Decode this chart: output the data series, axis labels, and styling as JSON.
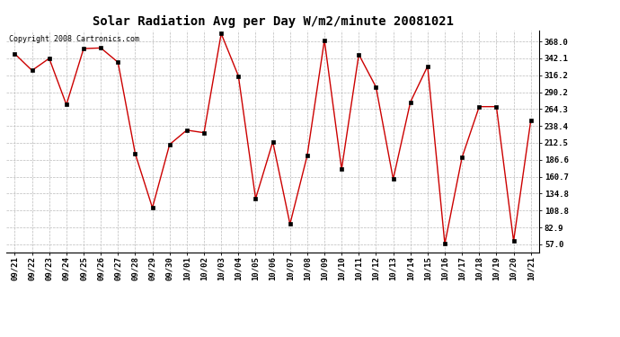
{
  "title": "Solar Radiation Avg per Day W/m2/minute 20081021",
  "copyright": "Copyright 2008 Cartronics.com",
  "dates": [
    "09/21",
    "09/22",
    "09/23",
    "09/24",
    "09/25",
    "09/26",
    "09/27",
    "09/28",
    "09/29",
    "09/30",
    "10/01",
    "10/02",
    "10/03",
    "10/04",
    "10/05",
    "10/06",
    "10/07",
    "10/08",
    "10/09",
    "10/10",
    "10/11",
    "10/12",
    "10/13",
    "10/14",
    "10/15",
    "10/16",
    "10/17",
    "10/18",
    "10/19",
    "10/20",
    "10/21"
  ],
  "values": [
    349.0,
    323.5,
    342.0,
    271.0,
    357.0,
    358.0,
    336.0,
    196.0,
    113.0,
    210.0,
    232.0,
    228.0,
    380.0,
    315.0,
    127.0,
    214.0,
    88.0,
    193.0,
    370.0,
    172.0,
    348.0,
    298.0,
    157.0,
    275.0,
    330.0,
    57.5,
    190.0,
    268.0,
    268.0,
    62.0,
    247.0
  ],
  "line_color": "#cc0000",
  "marker_color": "#000000",
  "bg_color": "#ffffff",
  "grid_color": "#bbbbbb",
  "title_fontsize": 10,
  "copyright_fontsize": 6,
  "tick_fontsize": 6.5,
  "ytick_values": [
    57.0,
    82.9,
    108.8,
    134.8,
    160.7,
    186.6,
    212.5,
    238.4,
    264.3,
    290.2,
    316.2,
    342.1,
    368.0
  ],
  "ylim": [
    44.0,
    385.0
  ]
}
